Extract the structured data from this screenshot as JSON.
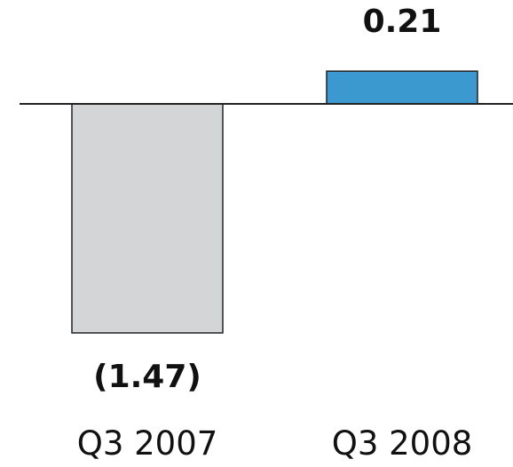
{
  "chart_data": {
    "type": "bar",
    "categories": [
      "Q3 2007",
      "Q3 2008"
    ],
    "values": [
      -1.47,
      0.21
    ],
    "value_labels": [
      "(1.47)",
      "0.21"
    ],
    "colors": {
      "negative_bar": "#d4d5d7",
      "positive_bar": "#3b99cf",
      "bar_stroke": "#222222",
      "baseline": "#222222",
      "text": "#111111"
    },
    "ylim": [
      -1.65,
      0.4
    ],
    "grid": false,
    "title": "",
    "xlabel": "",
    "ylabel": ""
  }
}
